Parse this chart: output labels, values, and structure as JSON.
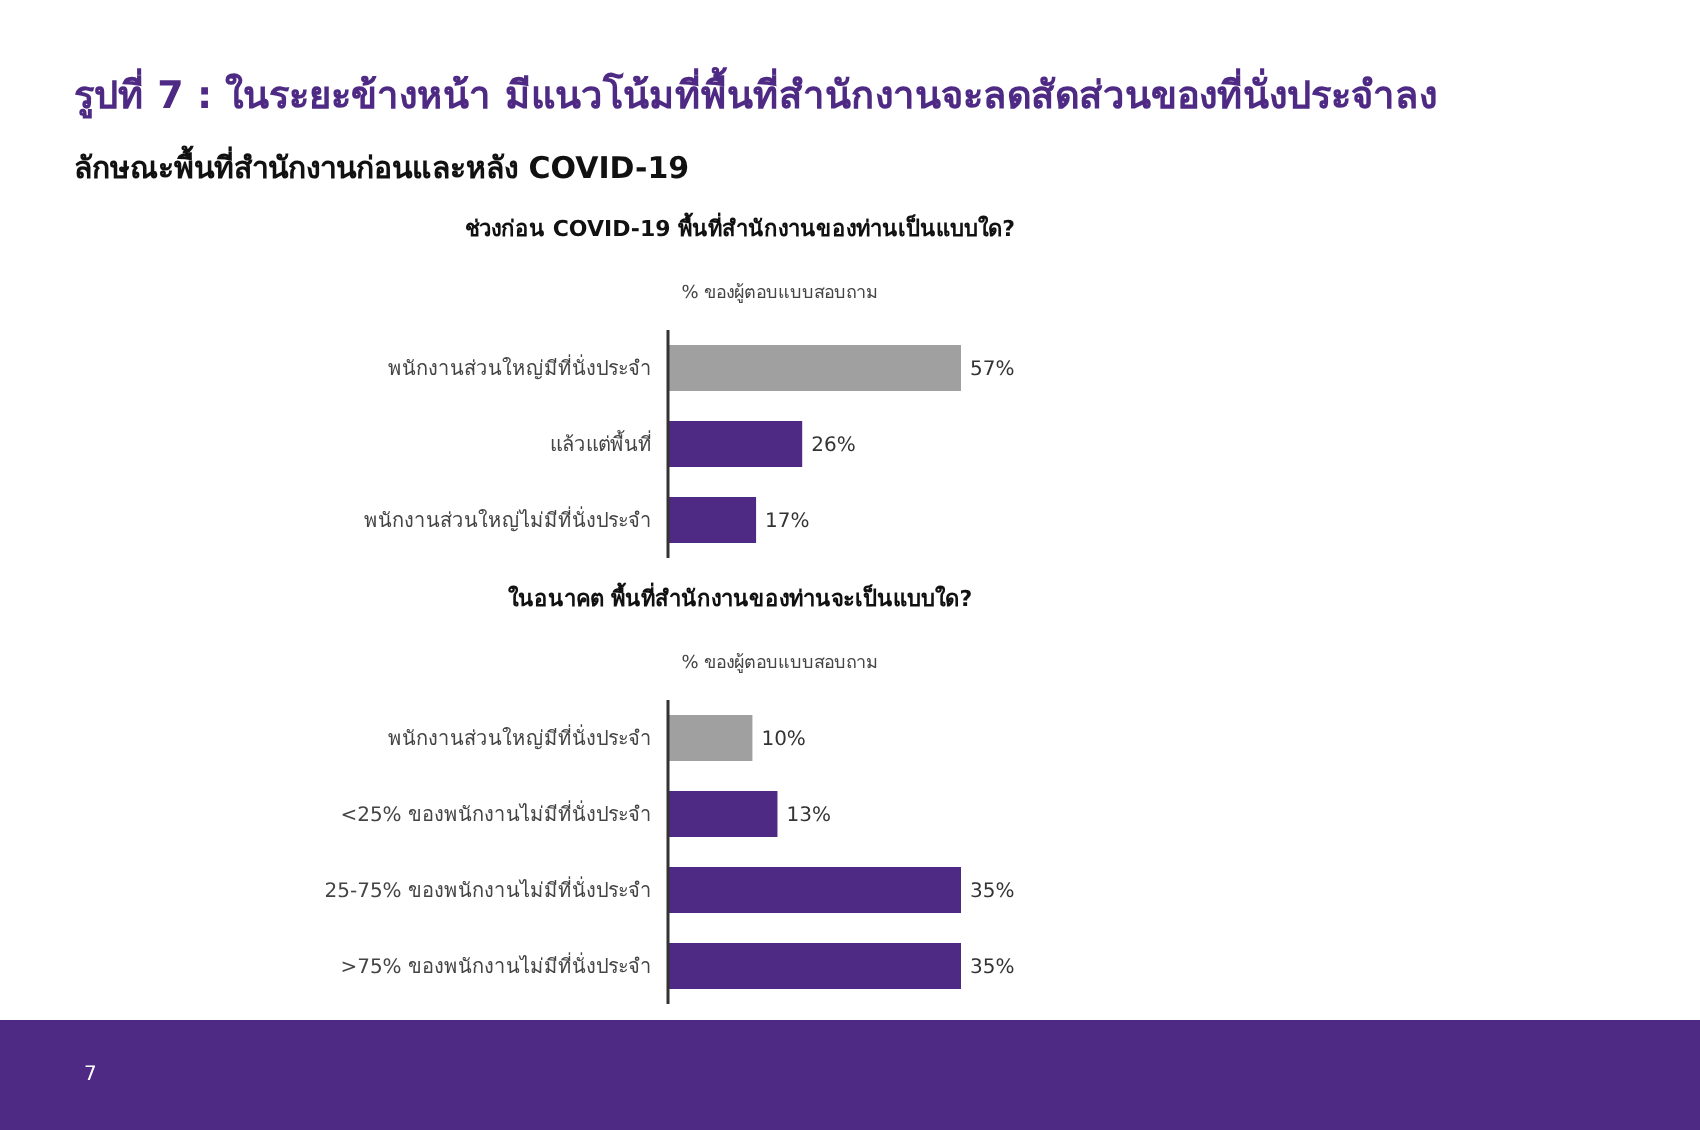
{
  "chart_data": [
    {
      "type": "other",
      "title": "รูปที่ 7 : ในระยะข้างหน้า มีแนวโน้มที่พื้นที่สำนักงานจะลดสัดส่วนของที่นั่งประจำลง",
      "subtitle": "ลักษณะพื้นที่สำนักงานก่อนและหลัง COVID-19",
      "annotations": [
        "7"
      ]
    },
    {
      "type": "bar",
      "orientation": "horizontal",
      "title": "ช่วงก่อน COVID-19 พื้นที่สำนักงานของท่านเป็นแบบใด?",
      "xlabel": "% ของผู้ตอบแบบสอบถาม",
      "categories": [
        "พนักงานส่วนใหญ่มีที่นั่งประจำ",
        "แล้วแต่พื้นที่",
        "พนักงานส่วนใหญ่ไม่มีที่นั่งประจำ"
      ],
      "values": [
        57,
        26,
        17
      ],
      "colors": [
        "#a0a0a0",
        "#4e2a84",
        "#4e2a84"
      ],
      "value_labels": [
        "57%",
        "26%",
        "17%"
      ]
    },
    {
      "type": "bar",
      "orientation": "horizontal",
      "title": "ในอนาคต พื้นที่สำนักงานของท่านจะเป็นแบบใด?",
      "xlabel": "% ของผู้ตอบแบบสอบถาม",
      "categories": [
        "พนักงานส่วนใหญ่มีที่นั่งประจำ",
        "<25% ของพนักงานไม่มีที่นั่งประจำ",
        "25-75% ของพนักงานไม่มีที่นั่งประจำ",
        ">75% ของพนักงานไม่มีที่นั่งประจำ"
      ],
      "values": [
        10,
        13,
        35,
        35
      ],
      "colors": [
        "#a0a0a0",
        "#4e2a84",
        "#4e2a84",
        "#4e2a84"
      ],
      "value_labels": [
        "10%",
        "13%",
        "35%",
        "35%"
      ]
    }
  ]
}
